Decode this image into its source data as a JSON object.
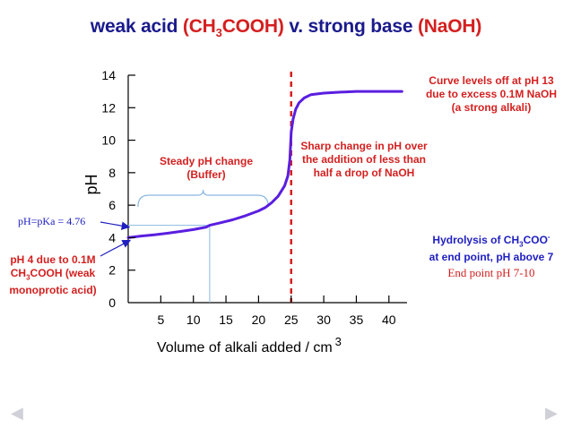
{
  "title": {
    "part1": "weak acid ",
    "acid_formula": "(CH3COOH)",
    "part2": " v. strong base ",
    "base_formula": "(NaOH)"
  },
  "annotations": {
    "levels_off": [
      "Curve levels off at pH 13",
      "due to excess 0.1M NaOH",
      "(a strong alkali)"
    ],
    "sharp_change": [
      "Sharp change in pH over",
      "the addition of less than",
      "half a drop of NaOH"
    ],
    "buffer": [
      "Steady pH change",
      "(Buffer)"
    ],
    "pka": "pH=pKa = 4.76",
    "ph4": [
      "pH 4 due to 0.1M",
      "CH3COOH (weak",
      "monoprotic acid)"
    ],
    "hydrolysis": [
      "Hydrolysis of CH3COO-",
      "at end point, pH above 7"
    ],
    "end_point": "End point pH 7-10"
  },
  "colors": {
    "title_blue": "#1a1a8c",
    "red": "#d42020",
    "curve": "#5a1ee0",
    "annotation_blue": "#2020c0",
    "guide": "#8ab8e0"
  },
  "chart_data": {
    "type": "line",
    "title": "weak acid (CH3COOH) v. strong base (NaOH)",
    "xlabel": "Volume of alkali added / cm3",
    "ylabel": "pH",
    "xlim": [
      0,
      43
    ],
    "ylim": [
      0,
      14
    ],
    "x_ticks": [
      5,
      10,
      15,
      20,
      25,
      30,
      35,
      40
    ],
    "y_ticks": [
      0,
      2,
      4,
      6,
      8,
      10,
      12,
      14
    ],
    "grid": false,
    "series": [
      {
        "x": [
          0,
          2,
          4,
          6,
          8,
          10,
          12,
          12.5,
          14,
          16,
          18,
          20,
          21,
          22,
          23,
          24,
          24.5,
          24.8,
          25,
          25.3,
          25.7,
          26.2,
          27,
          28,
          30,
          32,
          35,
          38,
          40,
          42
        ],
        "y": [
          4.0,
          4.1,
          4.18,
          4.27,
          4.38,
          4.5,
          4.65,
          4.76,
          4.9,
          5.1,
          5.35,
          5.65,
          5.85,
          6.15,
          6.55,
          7.2,
          7.8,
          8.8,
          10.5,
          11.3,
          11.9,
          12.3,
          12.6,
          12.8,
          12.9,
          12.95,
          13.0,
          13.0,
          13.0,
          13.0
        ]
      }
    ],
    "end_point_x": 25,
    "pka_point": {
      "x": 12.5,
      "y": 4.76
    },
    "buffer_range": [
      1.5,
      21.5
    ]
  }
}
